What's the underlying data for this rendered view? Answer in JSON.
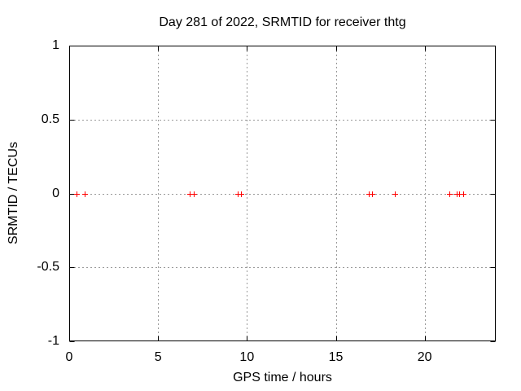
{
  "chart_data": {
    "type": "scatter",
    "title": "Day 281 of 2022, SRMTID for receiver thtg",
    "xlabel": "GPS time / hours",
    "ylabel": "SRMTID / TECUs",
    "xlim": [
      0,
      24
    ],
    "ylim": [
      -1,
      1
    ],
    "xticks": [
      {
        "v": 0,
        "label": "0"
      },
      {
        "v": 5,
        "label": "5"
      },
      {
        "v": 10,
        "label": "10"
      },
      {
        "v": 15,
        "label": "15"
      },
      {
        "v": 20,
        "label": "20"
      }
    ],
    "yticks": [
      {
        "v": 1,
        "label": "1"
      },
      {
        "v": 0.5,
        "label": "0.5"
      },
      {
        "v": 0,
        "label": "0"
      },
      {
        "v": -0.5,
        "label": "-0.5"
      },
      {
        "v": -1,
        "label": "-1"
      }
    ],
    "grid": true,
    "legend_position": "none",
    "series": [
      {
        "name": "SRMTID",
        "marker": "plus",
        "color": "#ff0000",
        "x": [
          0.43,
          0.89,
          6.8,
          6.99,
          9.5,
          9.68,
          16.87,
          17.05,
          18.33,
          21.37,
          21.78,
          21.96,
          22.17
        ],
        "y": [
          0,
          0,
          0,
          0,
          0,
          0,
          0,
          0,
          0,
          0,
          0,
          0,
          0
        ]
      }
    ],
    "colors": {
      "marker": "#ff0000",
      "grid": "#999999",
      "axis": "#000000",
      "background": "#ffffff"
    }
  }
}
